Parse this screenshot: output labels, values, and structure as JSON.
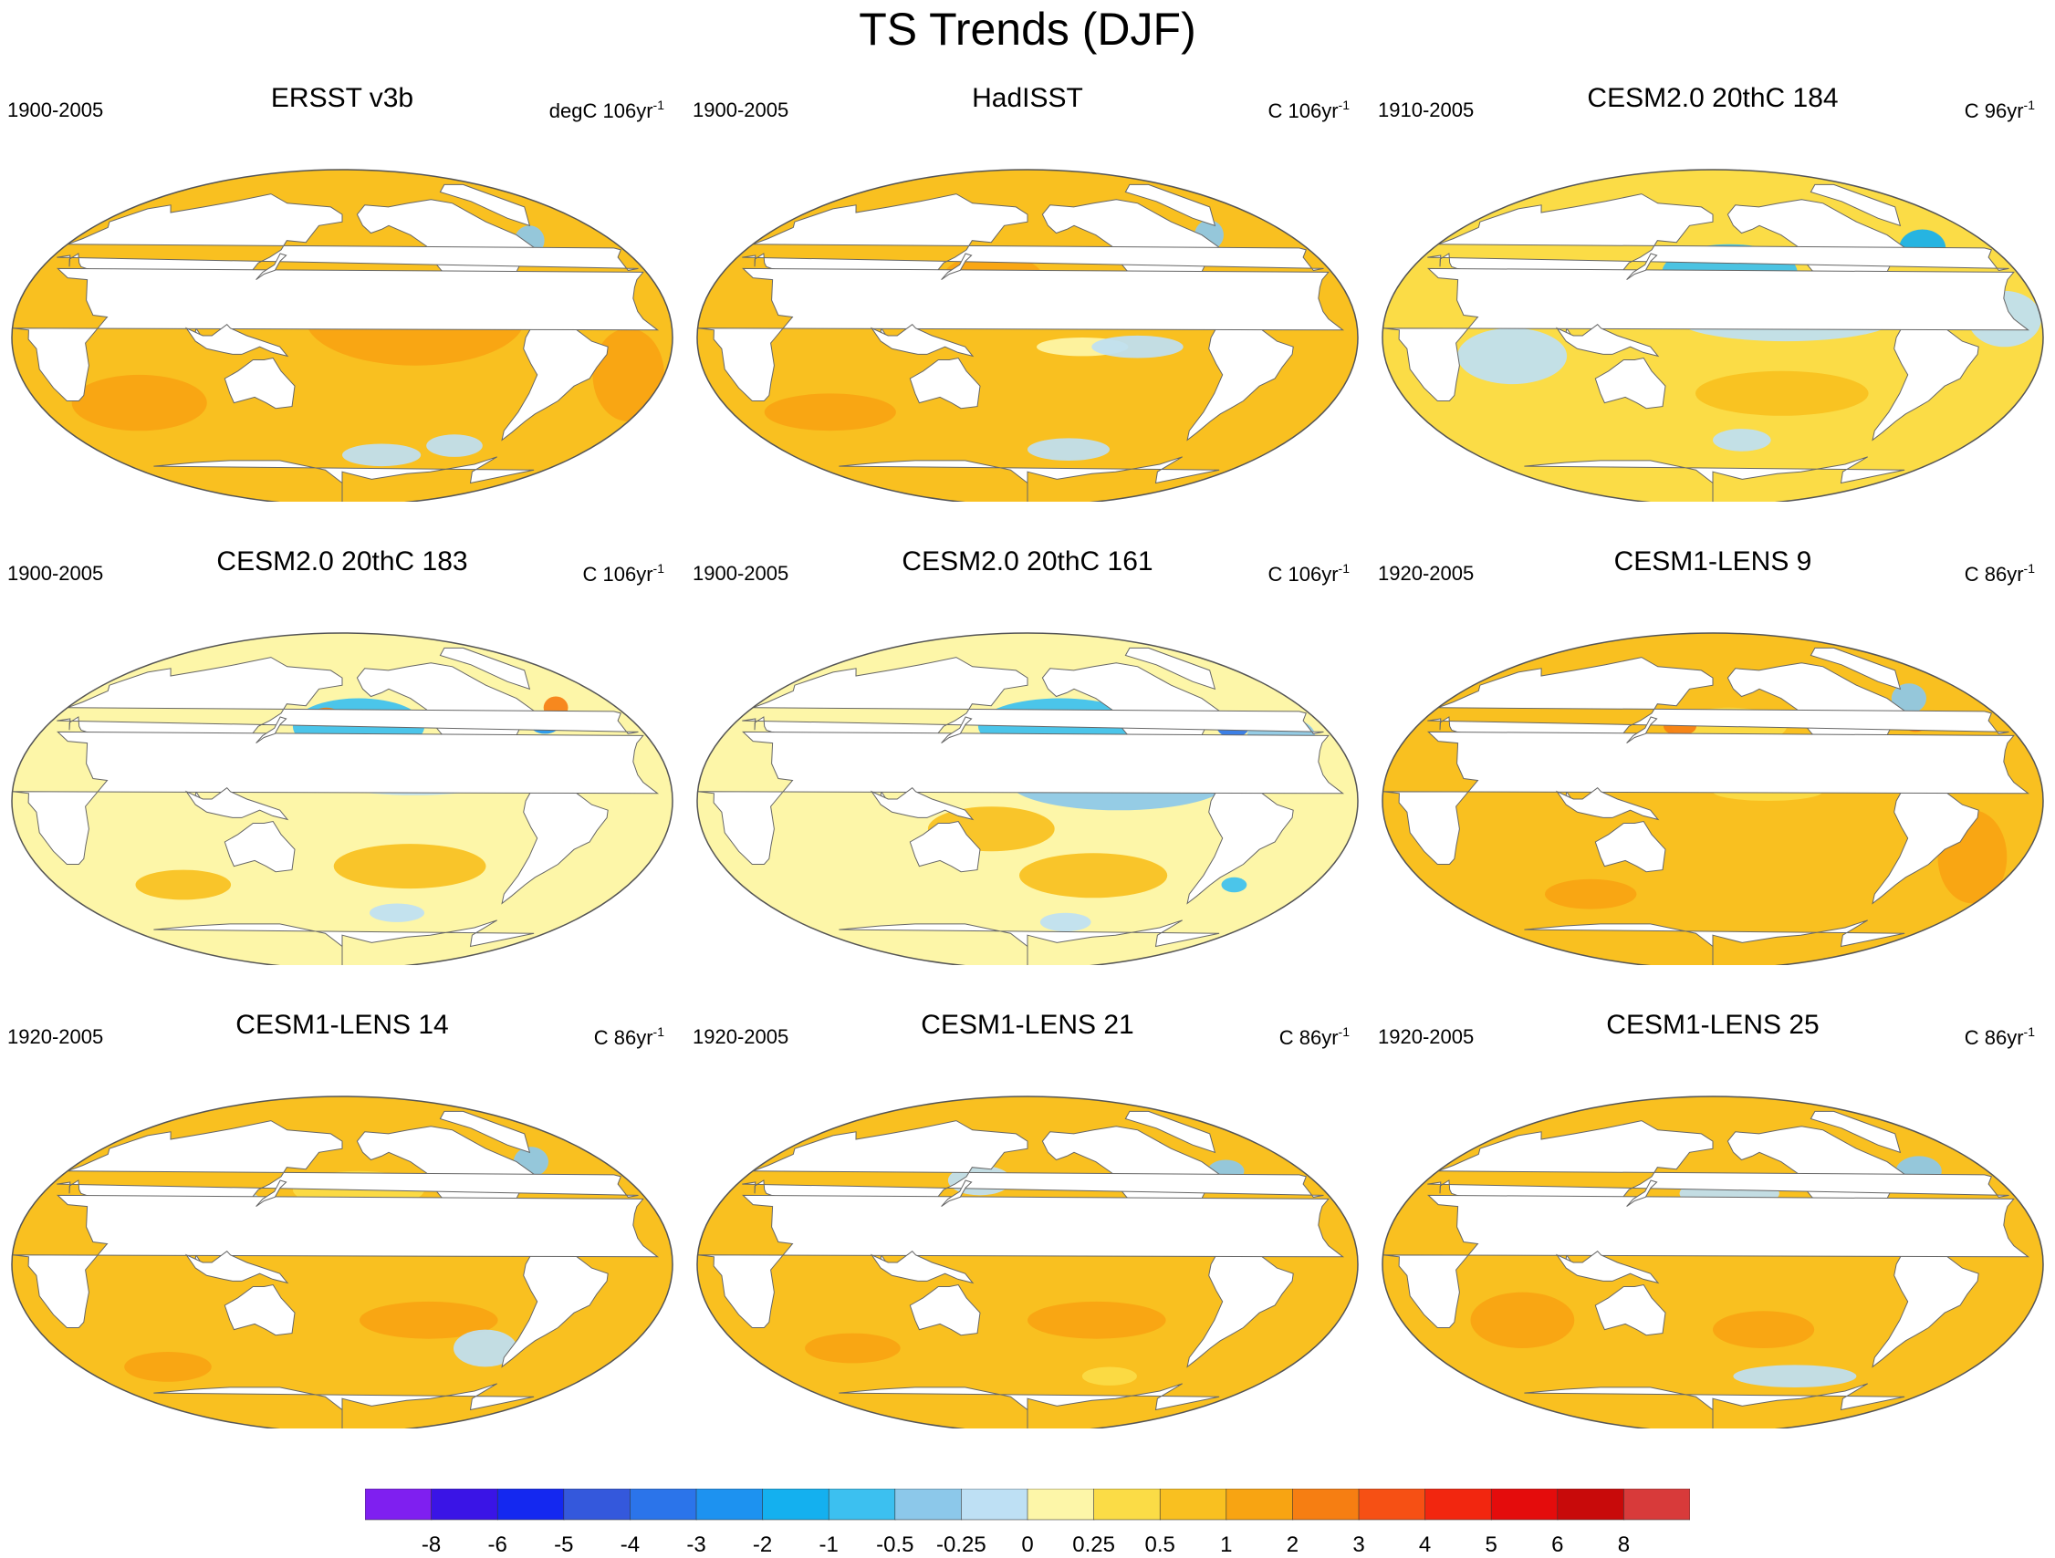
{
  "title": "TS Trends (DJF)",
  "colors": {
    "land": "#ffffff",
    "coast": "#666666",
    "palette": [
      "#7f1ff0",
      "#3a14e6",
      "#1428f0",
      "#3458dc",
      "#2b74ea",
      "#1d92f0",
      "#14b0ef",
      "#3cc0f0",
      "#8cc8ea",
      "#bee0f4",
      "#fdf6a8",
      "#fbdc46",
      "#f9c020",
      "#f8a412",
      "#f67e12",
      "#f65014",
      "#f2260f",
      "#e40c0c",
      "#c80a0a",
      "#d83a3a",
      "#f8b0b0"
    ]
  },
  "panels": [
    {
      "name": "ERSST v3b",
      "period": "1900-2005",
      "units": "degC 106yr",
      "units_sup": "-1",
      "bg": 12,
      "features": [
        {
          "lon": -140,
          "lat": 10,
          "rx": 60,
          "ry": 25,
          "c": 13
        },
        {
          "lon": 60,
          "lat": -35,
          "rx": 40,
          "ry": 15,
          "c": 13
        },
        {
          "lon": -20,
          "lat": -20,
          "rx": 20,
          "ry": 25,
          "c": 13
        },
        {
          "lon": -55,
          "lat": 52,
          "rx": 10,
          "ry": 8,
          "c": 8
        },
        {
          "lon": -150,
          "lat": -63,
          "rx": 30,
          "ry": 6,
          "c": 9
        },
        {
          "lon": -100,
          "lat": -58,
          "rx": 20,
          "ry": 6,
          "c": 9
        }
      ]
    },
    {
      "name": "HadISST",
      "period": "1900-2005",
      "units": "C 106yr",
      "units_sup": "-1",
      "bg": 12,
      "features": [
        {
          "lon": -150,
          "lat": -5,
          "rx": 25,
          "ry": 5,
          "c": 10
        },
        {
          "lon": -120,
          "lat": -5,
          "rx": 25,
          "ry": 6,
          "c": 9
        },
        {
          "lon": 160,
          "lat": 30,
          "rx": 30,
          "ry": 15,
          "c": 13
        },
        {
          "lon": -150,
          "lat": -60,
          "rx": 30,
          "ry": 6,
          "c": 9
        },
        {
          "lon": 60,
          "lat": -40,
          "rx": 40,
          "ry": 10,
          "c": 13
        },
        {
          "lon": -55,
          "lat": 55,
          "rx": 10,
          "ry": 8,
          "c": 8
        }
      ]
    },
    {
      "name": "CESM2.0 20thC 184",
      "period": "1910-2005",
      "units": "C 96yr",
      "units_sup": "-1",
      "bg": 11,
      "features": [
        {
          "lon": -170,
          "lat": 35,
          "rx": 40,
          "ry": 15,
          "c": 7
        },
        {
          "lon": -140,
          "lat": 10,
          "rx": 60,
          "ry": 12,
          "c": 9
        },
        {
          "lon": -45,
          "lat": 48,
          "rx": 15,
          "ry": 10,
          "c": 6
        },
        {
          "lon": -140,
          "lat": -30,
          "rx": 50,
          "ry": 12,
          "c": 12
        },
        {
          "lon": 70,
          "lat": -10,
          "rx": 30,
          "ry": 15,
          "c": 9
        },
        {
          "lon": -160,
          "lat": -55,
          "rx": 20,
          "ry": 6,
          "c": 9
        },
        {
          "lon": -20,
          "lat": 10,
          "rx": 20,
          "ry": 15,
          "c": 9
        }
      ]
    },
    {
      "name": "CESM2.0 20thC 183",
      "period": "1900-2005",
      "units": "C 106yr",
      "units_sup": "-1",
      "bg": 10,
      "features": [
        {
          "lon": -170,
          "lat": 40,
          "rx": 40,
          "ry": 15,
          "c": 7
        },
        {
          "lon": -140,
          "lat": 15,
          "rx": 60,
          "ry": 12,
          "c": 9
        },
        {
          "lon": -55,
          "lat": 42,
          "rx": 10,
          "ry": 6,
          "c": 5
        },
        {
          "lon": -40,
          "lat": 50,
          "rx": 8,
          "ry": 6,
          "c": 14
        },
        {
          "lon": 170,
          "lat": 45,
          "rx": 10,
          "ry": 5,
          "c": 14
        },
        {
          "lon": -140,
          "lat": -35,
          "rx": 45,
          "ry": 12,
          "c": 12
        },
        {
          "lon": -140,
          "lat": -60,
          "rx": 20,
          "ry": 5,
          "c": 9
        },
        {
          "lon": 80,
          "lat": -45,
          "rx": 30,
          "ry": 8,
          "c": 12
        }
      ]
    },
    {
      "name": "CESM2.0 20thC 161",
      "period": "1900-2005",
      "units": "C 106yr",
      "units_sup": "-1",
      "bg": 10,
      "features": [
        {
          "lon": -160,
          "lat": 40,
          "rx": 50,
          "ry": 15,
          "c": 7
        },
        {
          "lon": -130,
          "lat": 10,
          "rx": 60,
          "ry": 15,
          "c": 8
        },
        {
          "lon": -55,
          "lat": 40,
          "rx": 10,
          "ry": 6,
          "c": 4
        },
        {
          "lon": -30,
          "lat": 35,
          "rx": 20,
          "ry": 10,
          "c": 8
        },
        {
          "lon": 160,
          "lat": -15,
          "rx": 35,
          "ry": 12,
          "c": 12
        },
        {
          "lon": -140,
          "lat": -40,
          "rx": 45,
          "ry": 12,
          "c": 12
        },
        {
          "lon": -150,
          "lat": -65,
          "rx": 20,
          "ry": 5,
          "c": 9
        },
        {
          "lon": -50,
          "lat": -45,
          "rx": 8,
          "ry": 4,
          "c": 7
        }
      ]
    },
    {
      "name": "CESM1-LENS 9",
      "period": "1920-2005",
      "units": "C 86yr",
      "units_sup": "-1",
      "bg": 12,
      "features": [
        {
          "lon": -170,
          "lat": 40,
          "rx": 35,
          "ry": 10,
          "c": 11
        },
        {
          "lon": -45,
          "lat": 55,
          "rx": 12,
          "ry": 8,
          "c": 8
        },
        {
          "lon": -55,
          "lat": 42,
          "rx": 8,
          "ry": 5,
          "c": 14
        },
        {
          "lon": 160,
          "lat": 40,
          "rx": 10,
          "ry": 5,
          "c": 14
        },
        {
          "lon": -30,
          "lat": -30,
          "rx": 20,
          "ry": 25,
          "c": 13
        },
        {
          "lon": -150,
          "lat": 5,
          "rx": 30,
          "ry": 5,
          "c": 11
        },
        {
          "lon": 100,
          "lat": -50,
          "rx": 30,
          "ry": 8,
          "c": 13
        }
      ]
    },
    {
      "name": "CESM1-LENS 14",
      "period": "1920-2005",
      "units": "C 86yr",
      "units_sup": "-1",
      "bg": 12,
      "features": [
        {
          "lon": -170,
          "lat": 40,
          "rx": 40,
          "ry": 10,
          "c": 11
        },
        {
          "lon": -50,
          "lat": 55,
          "rx": 12,
          "ry": 8,
          "c": 8
        },
        {
          "lon": -55,
          "lat": 42,
          "rx": 6,
          "ry": 4,
          "c": 14
        },
        {
          "lon": 120,
          "lat": 30,
          "rx": 15,
          "ry": 10,
          "c": 9
        },
        {
          "lon": -130,
          "lat": -30,
          "rx": 40,
          "ry": 10,
          "c": 13
        },
        {
          "lon": -90,
          "lat": -45,
          "rx": 20,
          "ry": 10,
          "c": 9
        },
        {
          "lon": 60,
          "lat": -55,
          "rx": 30,
          "ry": 8,
          "c": 13
        }
      ]
    },
    {
      "name": "CESM1-LENS 21",
      "period": "1920-2005",
      "units": "C 86yr",
      "units_sup": "-1",
      "bg": 12,
      "features": [
        {
          "lon": 150,
          "lat": 45,
          "rx": 20,
          "ry": 8,
          "c": 9
        },
        {
          "lon": -50,
          "lat": 50,
          "rx": 12,
          "ry": 6,
          "c": 8
        },
        {
          "lon": -55,
          "lat": 42,
          "rx": 6,
          "ry": 4,
          "c": 14
        },
        {
          "lon": 130,
          "lat": 20,
          "rx": 15,
          "ry": 10,
          "c": 10
        },
        {
          "lon": -140,
          "lat": -30,
          "rx": 40,
          "ry": 10,
          "c": 13
        },
        {
          "lon": 70,
          "lat": -45,
          "rx": 30,
          "ry": 8,
          "c": 13
        },
        {
          "lon": -120,
          "lat": -60,
          "rx": 20,
          "ry": 5,
          "c": 11
        }
      ]
    },
    {
      "name": "CESM1-LENS 25",
      "period": "1920-2005",
      "units": "C 86yr",
      "units_sup": "-1",
      "bg": 12,
      "features": [
        {
          "lon": -170,
          "lat": 38,
          "rx": 30,
          "ry": 8,
          "c": 9
        },
        {
          "lon": -45,
          "lat": 50,
          "rx": 15,
          "ry": 8,
          "c": 8
        },
        {
          "lon": -55,
          "lat": 42,
          "rx": 6,
          "ry": 4,
          "c": 14
        },
        {
          "lon": -120,
          "lat": -60,
          "rx": 45,
          "ry": 6,
          "c": 9
        },
        {
          "lon": 70,
          "lat": -30,
          "rx": 30,
          "ry": 15,
          "c": 13
        },
        {
          "lon": -150,
          "lat": -35,
          "rx": 30,
          "ry": 10,
          "c": 13
        }
      ]
    }
  ],
  "colorbar": {
    "labels": [
      "-8",
      "-6",
      "-5",
      "-4",
      "-3",
      "-2",
      "-1",
      "-0.5",
      "-0.25",
      "0",
      "0.25",
      "0.5",
      "1",
      "2",
      "3",
      "4",
      "5",
      "6",
      "8"
    ]
  }
}
